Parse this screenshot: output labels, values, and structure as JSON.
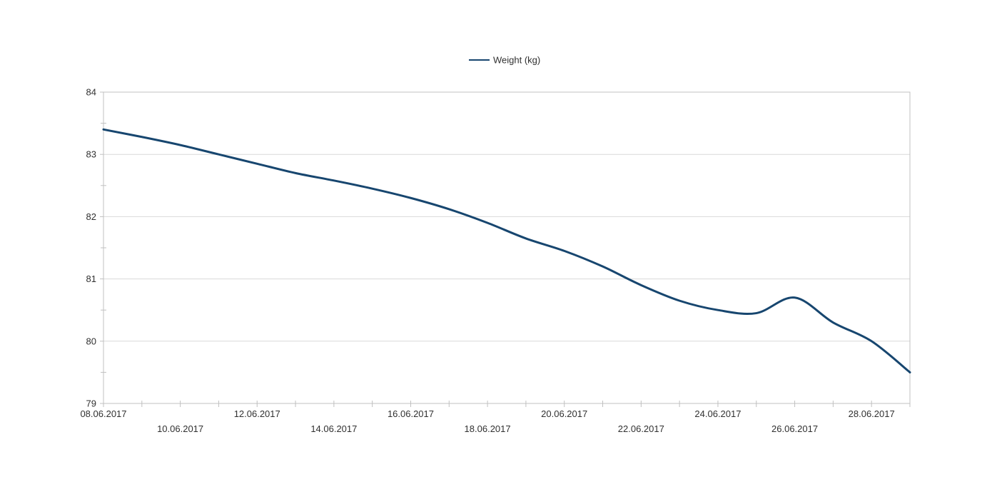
{
  "chart_data": {
    "type": "line",
    "title": "",
    "legend": {
      "label": "Weight (kg)",
      "position": "top-center"
    },
    "series": [
      {
        "name": "Weight (kg)",
        "smooth": true,
        "dates": [
          "08.06.2017",
          "09.06.2017",
          "10.06.2017",
          "11.06.2017",
          "12.06.2017",
          "13.06.2017",
          "14.06.2017",
          "15.06.2017",
          "16.06.2017",
          "17.06.2017",
          "18.06.2017",
          "19.06.2017",
          "20.06.2017",
          "21.06.2017",
          "22.06.2017",
          "23.06.2017",
          "24.06.2017",
          "25.06.2017",
          "26.06.2017",
          "27.06.2017",
          "28.06.2017",
          "29.06.2017"
        ],
        "values": [
          83.4,
          83.28,
          83.15,
          83.0,
          82.85,
          82.7,
          82.58,
          82.45,
          82.3,
          82.12,
          81.9,
          81.65,
          81.45,
          81.2,
          80.9,
          80.65,
          80.5,
          80.45,
          80.7,
          80.3,
          80.0,
          79.5
        ]
      }
    ],
    "x_axis": {
      "tick_labels": [
        "08.06.2017",
        "10.06.2017",
        "12.06.2017",
        "14.06.2017",
        "16.06.2017",
        "18.06.2017",
        "20.06.2017",
        "22.06.2017",
        "24.06.2017",
        "26.06.2017",
        "28.06.2017"
      ],
      "label_every_days": 2,
      "minor_tick_days": 1,
      "labels_alternate_rows": true
    },
    "y_axis": {
      "min": 79,
      "max": 84,
      "major_step": 1,
      "minor_step": 0.5,
      "tick_labels": [
        "79",
        "80",
        "81",
        "82",
        "83",
        "84"
      ]
    },
    "grid": {
      "horizontal": true,
      "vertical": false
    },
    "colors": {
      "line": "#17466F",
      "grid": "#D9D9D9",
      "axis": "#C0C0C0",
      "text": "#303030",
      "background": "#FFFFFF"
    }
  }
}
